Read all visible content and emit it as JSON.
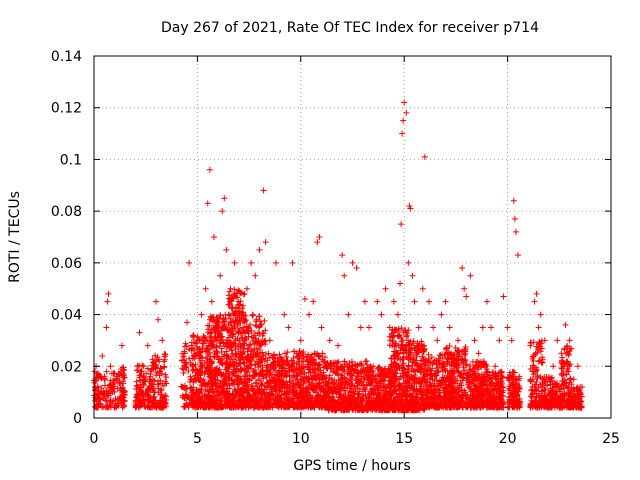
{
  "chart_data": {
    "type": "scatter",
    "title": "Day 267 of 2021, Rate Of TEC Index for receiver p714",
    "xlabel": "GPS time / hours",
    "ylabel": "ROTI / TECUs",
    "xlim": [
      0,
      25
    ],
    "ylim": [
      0,
      0.14
    ],
    "xticks": [
      0,
      5,
      10,
      15,
      20,
      25
    ],
    "xtick_labels": [
      "0",
      "5",
      "10",
      "15",
      "20",
      "25"
    ],
    "yticks": [
      0,
      0.02,
      0.04,
      0.06,
      0.08,
      0.1,
      0.12,
      0.14
    ],
    "ytick_labels": [
      "0",
      "0.02",
      "0.04",
      "0.06",
      "0.08",
      "0.1",
      "0.12",
      "0.14"
    ],
    "grid": true,
    "marker": "plus",
    "color": "#ff0000",
    "series": [
      {
        "name": "ROTI",
        "x": [
          0.05,
          0.1,
          0.2,
          0.3,
          0.4,
          0.6,
          0.65,
          0.7,
          0.8,
          0.9,
          1.3,
          1.35,
          1.4,
          2.1,
          2.2,
          2.4,
          2.5,
          2.6,
          2.7,
          3.0,
          3.1,
          3.2,
          3.3,
          4.3,
          4.4,
          4.5,
          4.6,
          4.8,
          5.0,
          5.2,
          5.4,
          5.5,
          5.6,
          5.7,
          5.8,
          6.0,
          6.1,
          6.2,
          6.3,
          6.4,
          6.5,
          6.6,
          6.8,
          7.0,
          7.2,
          7.4,
          7.6,
          7.8,
          8.0,
          8.2,
          8.3,
          8.5,
          8.8,
          9.0,
          9.2,
          9.4,
          9.6,
          9.8,
          10.0,
          10.2,
          10.4,
          10.6,
          10.8,
          10.9,
          11.0,
          11.2,
          11.4,
          11.6,
          11.8,
          12.0,
          12.1,
          12.3,
          12.5,
          12.7,
          12.9,
          13.1,
          13.3,
          13.5,
          13.7,
          13.9,
          14.1,
          14.3,
          14.5,
          14.7,
          14.8,
          14.85,
          14.9,
          14.95,
          15.0,
          15.1,
          15.2,
          15.25,
          15.3,
          15.4,
          15.5,
          15.7,
          15.9,
          16.0,
          16.2,
          16.4,
          16.6,
          16.8,
          17.0,
          17.2,
          17.4,
          17.6,
          17.8,
          17.9,
          18.0,
          18.2,
          18.4,
          18.6,
          18.8,
          19.0,
          19.2,
          19.4,
          19.6,
          19.8,
          20.0,
          20.2,
          20.3,
          20.35,
          20.4,
          20.5,
          21.1,
          21.2,
          21.3,
          21.4,
          21.5,
          21.6,
          21.8,
          22.0,
          22.2,
          22.4,
          22.6,
          22.8,
          23.0,
          23.2,
          23.4,
          23.6
        ],
        "y": [
          0.012,
          0.02,
          0.008,
          0.016,
          0.024,
          0.035,
          0.045,
          0.048,
          0.02,
          0.01,
          0.018,
          0.028,
          0.009,
          0.012,
          0.033,
          0.02,
          0.01,
          0.028,
          0.015,
          0.045,
          0.038,
          0.018,
          0.03,
          0.012,
          0.025,
          0.037,
          0.06,
          0.02,
          0.03,
          0.04,
          0.05,
          0.083,
          0.096,
          0.045,
          0.07,
          0.035,
          0.055,
          0.08,
          0.085,
          0.065,
          0.04,
          0.05,
          0.06,
          0.045,
          0.035,
          0.05,
          0.06,
          0.055,
          0.065,
          0.088,
          0.068,
          0.03,
          0.06,
          0.02,
          0.04,
          0.035,
          0.06,
          0.025,
          0.03,
          0.046,
          0.04,
          0.045,
          0.068,
          0.07,
          0.035,
          0.02,
          0.03,
          0.018,
          0.028,
          0.063,
          0.055,
          0.04,
          0.06,
          0.058,
          0.035,
          0.045,
          0.035,
          0.02,
          0.045,
          0.04,
          0.05,
          0.035,
          0.045,
          0.04,
          0.052,
          0.075,
          0.11,
          0.115,
          0.122,
          0.118,
          0.06,
          0.082,
          0.081,
          0.055,
          0.045,
          0.035,
          0.05,
          0.101,
          0.045,
          0.035,
          0.03,
          0.04,
          0.045,
          0.035,
          0.02,
          0.03,
          0.058,
          0.05,
          0.047,
          0.055,
          0.03,
          0.025,
          0.035,
          0.045,
          0.035,
          0.02,
          0.03,
          0.047,
          0.035,
          0.03,
          0.084,
          0.077,
          0.072,
          0.063,
          0.028,
          0.018,
          0.045,
          0.048,
          0.035,
          0.04,
          0.03,
          0.015,
          0.02,
          0.03,
          0.025,
          0.036,
          0.03,
          0.015,
          0.02,
          0.012
        ]
      }
    ],
    "dense_clusters": [
      [
        0.0,
        1.5,
        0.004,
        0.018,
        160
      ],
      [
        1.3,
        1.5,
        0.006,
        0.02,
        25
      ],
      [
        2.0,
        2.8,
        0.004,
        0.022,
        120
      ],
      [
        2.8,
        3.5,
        0.004,
        0.025,
        120
      ],
      [
        4.2,
        4.7,
        0.004,
        0.03,
        60
      ],
      [
        4.7,
        5.5,
        0.004,
        0.032,
        220
      ],
      [
        5.5,
        6.5,
        0.004,
        0.04,
        380
      ],
      [
        6.5,
        7.3,
        0.004,
        0.05,
        340
      ],
      [
        7.3,
        8.3,
        0.004,
        0.04,
        300
      ],
      [
        8.3,
        9.3,
        0.004,
        0.025,
        240
      ],
      [
        9.3,
        10.3,
        0.004,
        0.026,
        240
      ],
      [
        10.3,
        11.3,
        0.004,
        0.025,
        250
      ],
      [
        11.3,
        12.3,
        0.003,
        0.022,
        230
      ],
      [
        12.3,
        13.3,
        0.003,
        0.022,
        220
      ],
      [
        13.3,
        14.3,
        0.003,
        0.02,
        230
      ],
      [
        14.3,
        15.2,
        0.003,
        0.035,
        320
      ],
      [
        15.2,
        16.0,
        0.003,
        0.03,
        250
      ],
      [
        16.0,
        17.0,
        0.004,
        0.025,
        250
      ],
      [
        17.0,
        18.0,
        0.004,
        0.028,
        280
      ],
      [
        18.0,
        19.0,
        0.004,
        0.022,
        240
      ],
      [
        19.0,
        19.8,
        0.004,
        0.018,
        180
      ],
      [
        20.0,
        20.6,
        0.004,
        0.018,
        120
      ],
      [
        21.1,
        21.7,
        0.004,
        0.03,
        120
      ],
      [
        21.7,
        22.2,
        0.004,
        0.016,
        90
      ],
      [
        22.2,
        22.6,
        0.004,
        0.014,
        70
      ],
      [
        22.6,
        23.1,
        0.004,
        0.028,
        110
      ],
      [
        23.1,
        23.6,
        0.004,
        0.012,
        90
      ]
    ]
  }
}
